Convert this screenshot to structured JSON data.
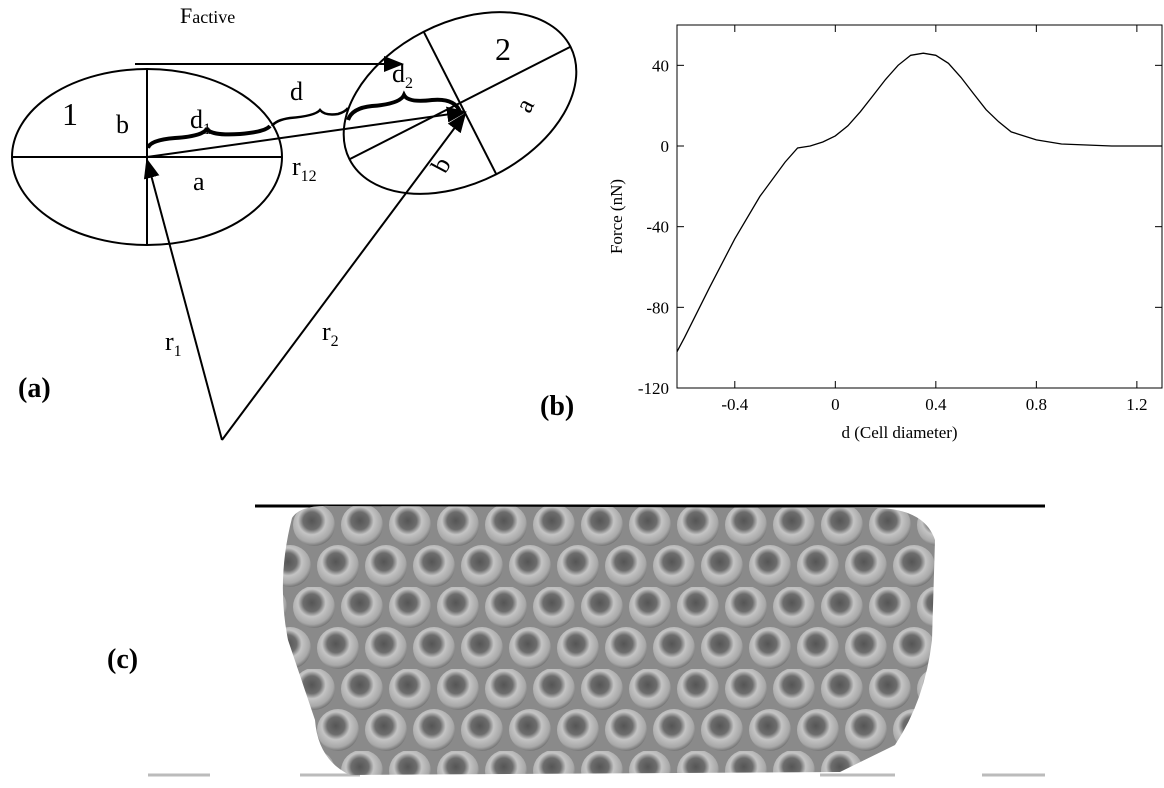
{
  "panels": {
    "a": {
      "label": "(a)",
      "force": {
        "text": "F",
        "sub": "active"
      },
      "cell1": "1",
      "cell2": "2",
      "b1": "b",
      "a1": "a",
      "d1": {
        "text": "d",
        "sub": "1"
      },
      "d": "d",
      "d2": {
        "text": "d",
        "sub": "2"
      },
      "a2": "a",
      "b2": "b",
      "r12": {
        "text": "r",
        "sub": "12"
      },
      "r1": {
        "text": "r",
        "sub": "1"
      },
      "r2": {
        "text": "r",
        "sub": "2"
      }
    },
    "b": {
      "label": "(b)"
    },
    "c": {
      "label": "(c)"
    }
  },
  "chart_data": {
    "type": "line",
    "xlabel": "d (Cell diameter)",
    "ylabel": "Force (nN)",
    "color": "#000000",
    "x": [
      -0.63,
      -0.6,
      -0.5,
      -0.4,
      -0.3,
      -0.2,
      -0.15,
      -0.1,
      -0.05,
      0,
      0.05,
      0.1,
      0.15,
      0.2,
      0.25,
      0.3,
      0.35,
      0.4,
      0.45,
      0.5,
      0.55,
      0.6,
      0.65,
      0.7,
      0.8,
      0.9,
      1.0,
      1.1,
      1.3
    ],
    "values": [
      -102,
      -95,
      -70,
      -46,
      -25,
      -8,
      -1,
      0,
      2,
      5,
      10,
      17,
      25,
      33,
      40,
      45,
      46,
      45,
      41,
      34,
      26,
      18,
      12,
      7,
      3,
      1,
      0.5,
      0,
      0
    ],
    "xlim": [
      -0.63,
      1.3
    ],
    "ylim": [
      -120,
      60
    ],
    "xticks": [
      -0.4,
      0,
      0.4,
      0.8,
      1.2
    ],
    "yticks": [
      -120,
      -80,
      -40,
      0,
      40
    ]
  }
}
